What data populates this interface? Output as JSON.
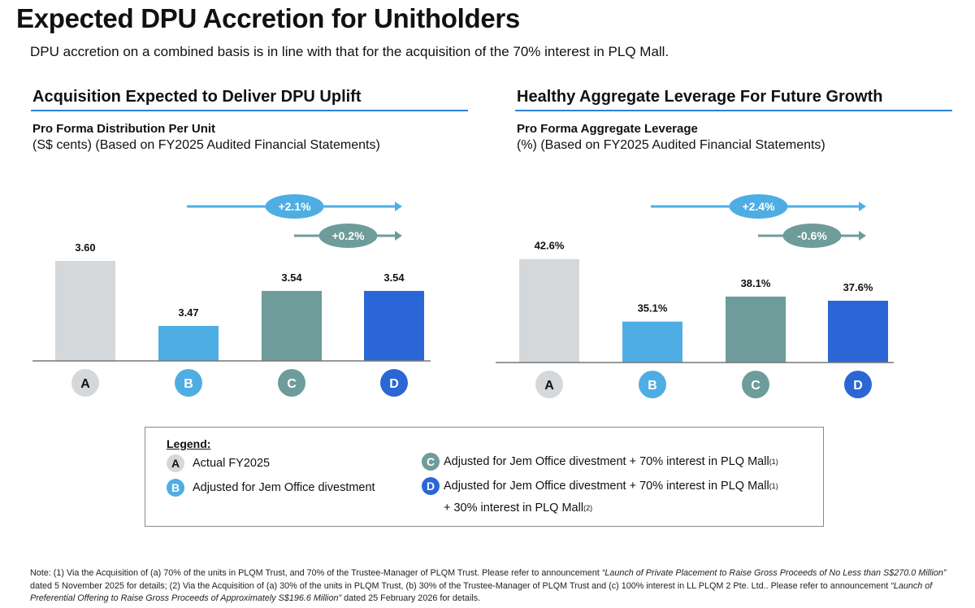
{
  "header": {
    "title": "Expected DPU Accretion for Unitholders",
    "subtitle": "DPU accretion on a combined basis is in line with that for the acquisition of the 70% interest in PLQ Mall."
  },
  "colors": {
    "A": "#d5d8da",
    "B": "#4eaee3",
    "C": "#6e9c9a",
    "D": "#2b66d6",
    "accent_line": "#2f7fd6"
  },
  "chart_data": [
    {
      "type": "bar",
      "section_title": "Acquisition Expected to Deliver DPU Uplift",
      "title": "Pro Forma Distribution Per Unit",
      "subtitle": "(S$ cents) (Based on FY2025 Audited Financial Statements)",
      "categories": [
        "A",
        "B",
        "C",
        "D"
      ],
      "values": [
        3.6,
        3.47,
        3.54,
        3.54
      ],
      "labels": [
        "3.60",
        "3.47",
        "3.54",
        "3.54"
      ],
      "ylim": [
        3.4,
        3.7
      ],
      "annotations": [
        {
          "text": "+2.1%",
          "from": "B",
          "to": "D",
          "color": "#4eaee3"
        },
        {
          "text": "+0.2%",
          "from": "C",
          "to": "D",
          "color": "#6e9c9a"
        }
      ]
    },
    {
      "type": "bar",
      "section_title": "Healthy Aggregate Leverage For Future Growth",
      "title": "Pro Forma Aggregate Leverage",
      "subtitle": "(%) (Based on FY2025 Audited Financial Statements)",
      "categories": [
        "A",
        "B",
        "C",
        "D"
      ],
      "values": [
        42.6,
        35.1,
        38.1,
        37.6
      ],
      "labels": [
        "42.6%",
        "35.1%",
        "38.1%",
        "37.6%"
      ],
      "ylim": [
        30.2,
        45
      ],
      "annotations": [
        {
          "text": "+2.4%",
          "from": "B",
          "to": "D",
          "color": "#4eaee3"
        },
        {
          "text": "-0.6%",
          "from": "C",
          "to": "D",
          "color": "#6e9c9a"
        }
      ]
    }
  ],
  "legend": {
    "heading": "Legend:",
    "items": [
      {
        "key": "A",
        "text": "Actual FY2025"
      },
      {
        "key": "B",
        "text": "Adjusted for Jem Office divestment"
      },
      {
        "key": "C",
        "text": "Adjusted for Jem Office divestment + 70% interest in PLQ Mall",
        "sup": "(1)"
      },
      {
        "key": "D",
        "text": "Adjusted for Jem Office divestment + 70% interest in PLQ Mall",
        "sup": "(1)",
        "text2": "+ 30% interest in PLQ Mall",
        "sup2": "(2)"
      }
    ]
  },
  "note": {
    "p1": "Note: (1) Via the Acquisition of (a) 70% of the units in PLQM Trust, and 70% of the Trustee-Manager of PLQM Trust. Please refer to announcement ",
    "i1": "“Launch of Private Placement to Raise Gross Proceeds of No Less than S$270.0 Million”",
    "p2": " dated 5 November 2025 for details; (2) Via the Acquisition of (a) 30% of the units in PLQM Trust, (b) 30% of the Trustee-Manager of PLQM Trust and (c) 100% interest in LL PLQM 2 Pte. Ltd.. Please refer to announcement ",
    "i2": "“Launch of Preferential Offering to Raise Gross Proceeds of Approximately S$196.6 Million”",
    "p3": " dated 25 February 2026 for details."
  }
}
